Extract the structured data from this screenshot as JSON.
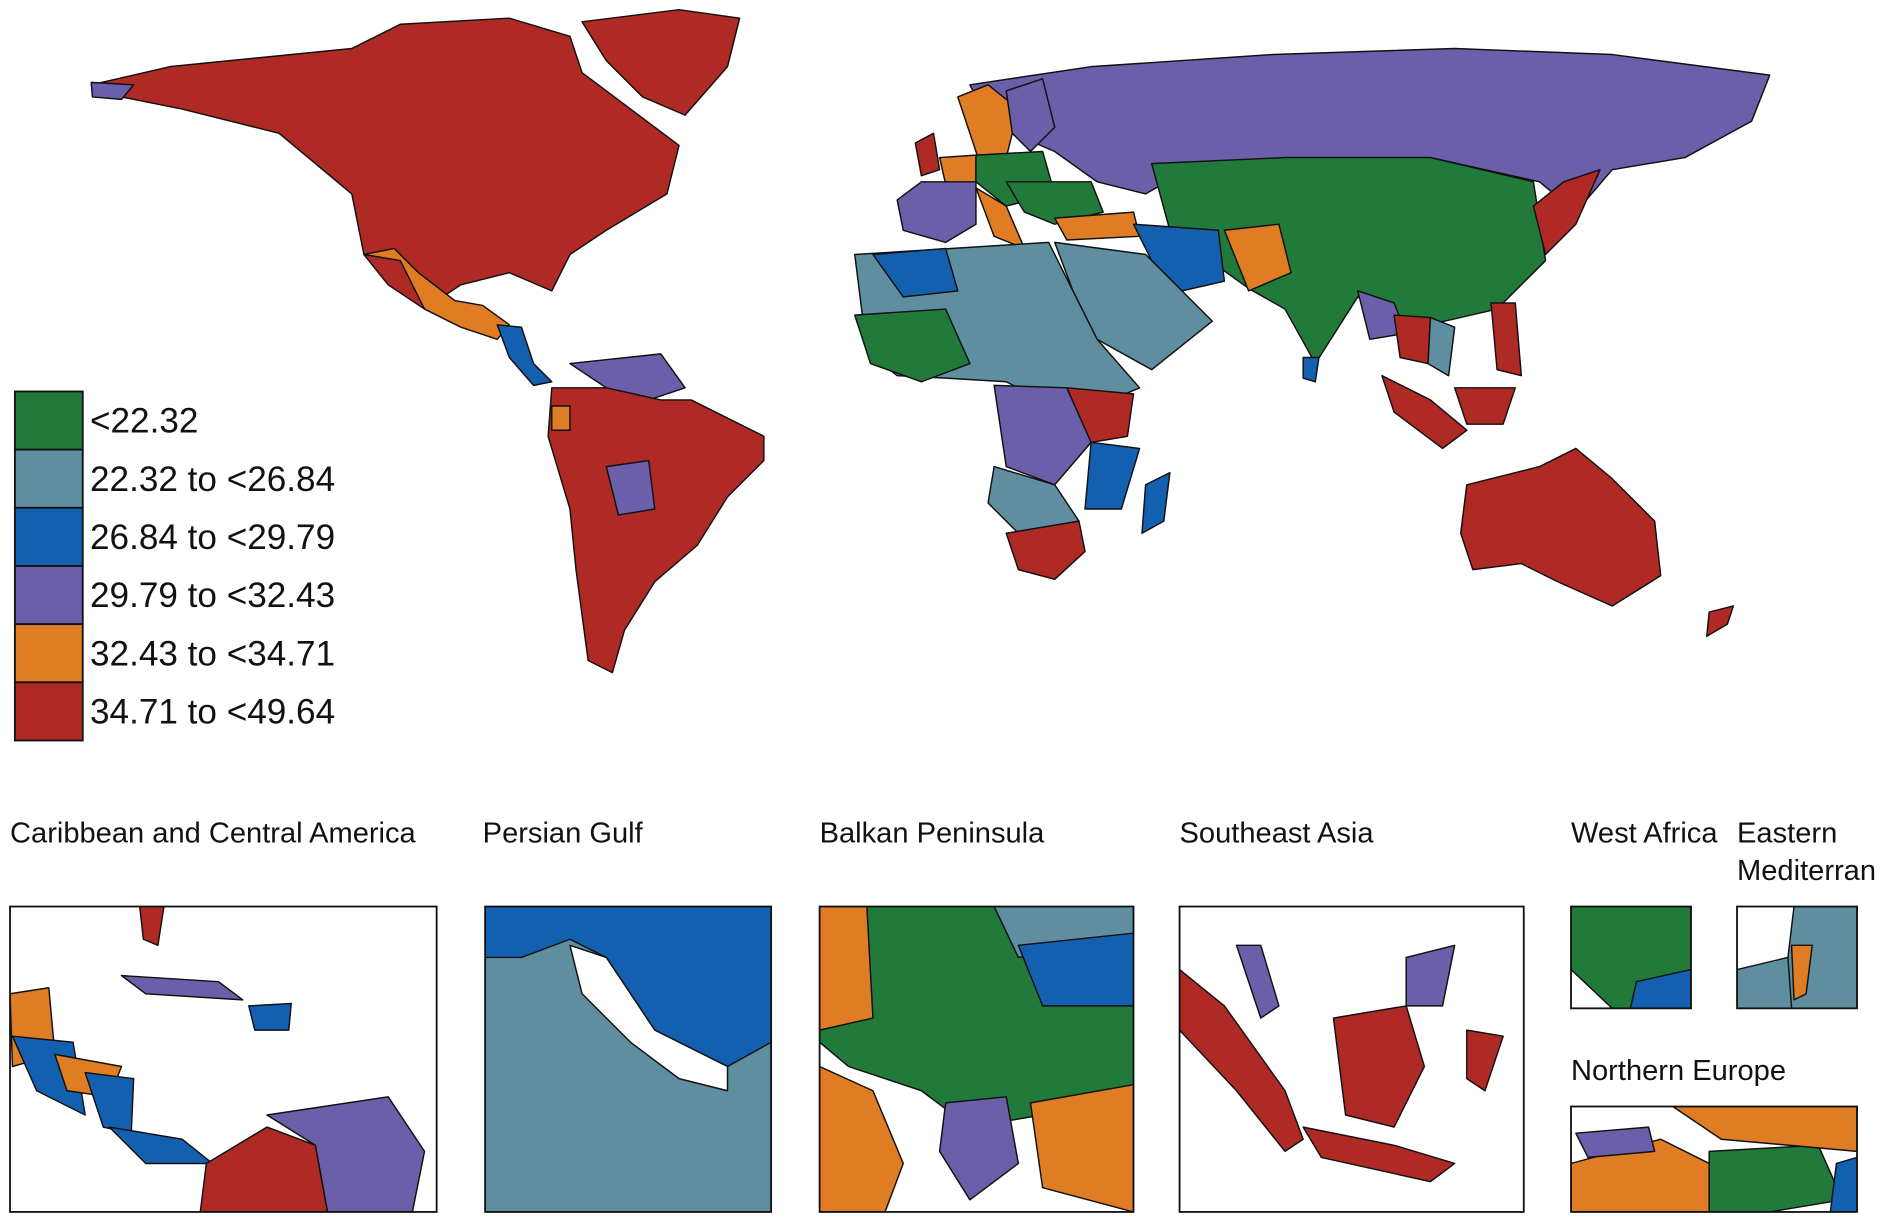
{
  "legend": {
    "items": [
      {
        "label": "<22.32",
        "color": "#217a3a"
      },
      {
        "label": "22.32 to <26.84",
        "color": "#5f8ea0"
      },
      {
        "label": "26.84 to <29.79",
        "color": "#1460b0"
      },
      {
        "label": "29.79 to <32.43",
        "color": "#6a5fa8"
      },
      {
        "label": "32.43 to <34.71",
        "color": "#e07d24"
      },
      {
        "label": "34.71 to <49.64",
        "color": "#b02a25"
      }
    ]
  },
  "insets": [
    {
      "title_lines": [
        "Caribbean and Central America"
      ]
    },
    {
      "title_lines": [
        "Persian Gulf"
      ]
    },
    {
      "title_lines": [
        "Balkan Peninsula"
      ]
    },
    {
      "title_lines": [
        "Southeast Asia"
      ]
    },
    {
      "title_lines": [
        "West Africa"
      ]
    },
    {
      "title_lines": [
        "Eastern",
        "Mediterran"
      ]
    },
    {
      "title_lines": [
        "Northern Europe"
      ]
    }
  ]
}
